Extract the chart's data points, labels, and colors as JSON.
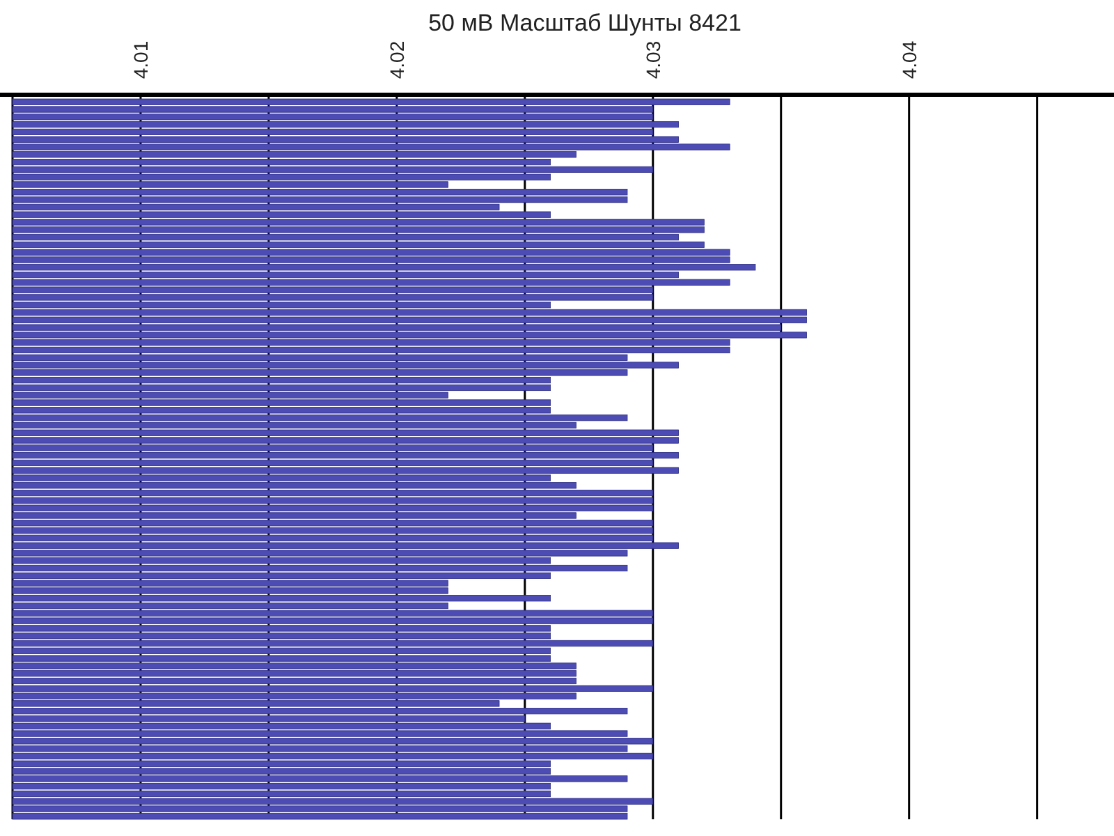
{
  "chart_data": {
    "type": "bar",
    "orientation": "horizontal",
    "title": "50 мВ Масштаб   Шунты 8421",
    "categories": [
      null,
      null,
      null,
      null,
      null,
      null,
      null,
      null,
      null,
      null,
      null,
      null,
      null,
      null,
      null,
      null,
      null,
      null,
      null,
      null,
      null,
      null,
      null,
      null,
      null,
      null,
      null,
      null,
      null,
      null,
      null,
      null,
      null,
      null,
      null,
      null,
      null,
      null,
      null,
      null,
      null,
      null,
      null,
      null,
      null,
      null,
      null,
      null,
      null,
      null,
      null,
      null,
      null,
      null,
      null,
      null,
      null,
      null,
      null,
      null,
      null,
      null,
      null,
      null,
      null,
      null,
      null,
      null,
      null,
      null,
      null,
      null,
      null,
      null,
      null,
      null,
      null,
      null,
      null,
      null,
      null,
      null,
      null,
      null,
      null,
      null,
      null,
      null,
      null,
      null,
      null,
      null,
      null,
      null,
      null,
      null
    ],
    "values": [
      4.033,
      4.03,
      4.03,
      4.031,
      4.03,
      4.031,
      4.033,
      4.027,
      4.026,
      4.03,
      4.026,
      4.022,
      4.029,
      4.029,
      4.024,
      4.026,
      4.032,
      4.032,
      4.031,
      4.032,
      4.033,
      4.033,
      4.034,
      4.031,
      4.033,
      4.03,
      4.03,
      4.026,
      4.036,
      4.036,
      4.035,
      4.036,
      4.033,
      4.033,
      4.029,
      4.031,
      4.029,
      4.026,
      4.026,
      4.022,
      4.026,
      4.026,
      4.029,
      4.027,
      4.031,
      4.031,
      4.03,
      4.031,
      4.03,
      4.031,
      4.026,
      4.027,
      4.03,
      4.03,
      4.03,
      4.027,
      4.03,
      4.03,
      4.03,
      4.031,
      4.029,
      4.026,
      4.029,
      4.026,
      4.022,
      4.022,
      4.026,
      4.022,
      4.03,
      4.03,
      4.026,
      4.026,
      4.03,
      4.026,
      4.026,
      4.027,
      4.027,
      4.027,
      4.03,
      4.027,
      4.024,
      4.029,
      4.025,
      4.026,
      4.029,
      4.03,
      4.029,
      4.03,
      4.026,
      4.026,
      4.029,
      4.026,
      4.026,
      4.03,
      4.029,
      4.029
    ],
    "color": "#4c4cb4",
    "xlim": [
      4.005,
      4.048
    ],
    "xticks": [
      {
        "value": 4.005,
        "label": null
      },
      4.01,
      {
        "value": 4.015,
        "label": null
      },
      4.02,
      {
        "value": 4.025,
        "label": null
      },
      4.03,
      {
        "value": 4.035,
        "label": null
      },
      4.04,
      {
        "value": 4.045,
        "label": null
      }
    ],
    "grid": true
  }
}
